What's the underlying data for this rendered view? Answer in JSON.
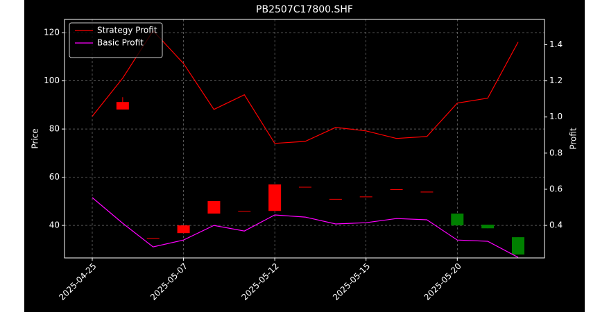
{
  "chart_data": {
    "type": "candlestick",
    "title": "PB2507C17800.SHF",
    "y_label": "Price",
    "y2_label": "Profit",
    "categories": [
      "2025-04-25",
      null,
      null,
      "2025-05-07",
      null,
      null,
      "2025-05-12",
      null,
      null,
      "2025-05-15",
      null,
      null,
      "2025-05-20",
      null,
      null
    ],
    "open": [
      null,
      88.1,
      34.8,
      36.8,
      44.9,
      46.0,
      46.0,
      56.0,
      51.0,
      52.0,
      55.0,
      54.0,
      44.9,
      40.3,
      35.1
    ],
    "close": [
      null,
      91.2,
      34.8,
      40.0,
      50.1,
      46.0,
      57.0,
      56.0,
      51.0,
      52.0,
      55.0,
      54.0,
      40.0,
      38.8,
      27.9
    ],
    "high": [
      null,
      93.2,
      34.8,
      40.0,
      50.1,
      46.0,
      57.0,
      56.0,
      51.0,
      52.0,
      55.0,
      54.0,
      44.9,
      40.3,
      35.1
    ],
    "low": [
      null,
      88.1,
      34.8,
      36.8,
      44.9,
      46.0,
      46.0,
      56.0,
      51.0,
      52.0,
      55.0,
      54.0,
      40.0,
      38.8,
      27.9
    ],
    "up_color": "#ff0000",
    "down_color": "#008000",
    "series": [
      {
        "name": "Strategy Profit",
        "color": "#ff0000",
        "axis": "y2",
        "values": [
          1.004,
          1.215,
          1.477,
          1.296,
          1.042,
          1.123,
          0.854,
          0.865,
          0.942,
          0.923,
          0.881,
          0.892,
          1.077,
          1.104,
          1.415
        ]
      },
      {
        "name": "Basic Profit",
        "color": "#ff00ff",
        "axis": "y2",
        "values": [
          0.554,
          0.412,
          0.281,
          0.319,
          0.4,
          0.369,
          0.458,
          0.446,
          0.408,
          0.415,
          0.438,
          0.431,
          0.319,
          0.312,
          0.223
        ]
      }
    ],
    "ylim": [
      26.5,
      125.5
    ],
    "yticks": [
      40,
      60,
      80,
      100,
      120
    ],
    "y2lim": [
      0.22,
      1.54
    ],
    "y2ticks": [
      0.4,
      0.6,
      0.8,
      {
        "value": 1,
        "label": "1.0"
      },
      1.2,
      1.4
    ],
    "grid": true,
    "legend": "upper left"
  }
}
